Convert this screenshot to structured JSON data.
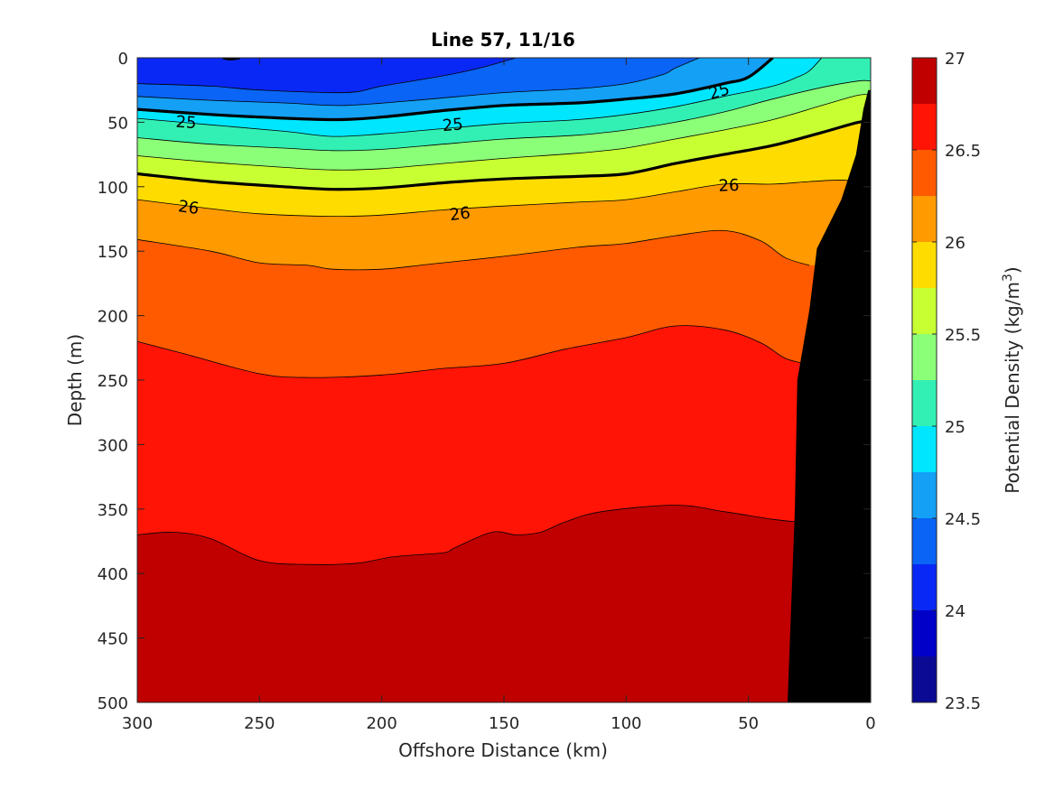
{
  "chart_data": {
    "type": "contour",
    "title": "Line 57, 11/16",
    "xlabel": "Offshore Distance (km)",
    "ylabel": "Depth (m)",
    "colorbar_label_prefix": "Potential Density (kg/m",
    "colorbar_label_sup": "3",
    "colorbar_label_suffix": ")",
    "xlim": [
      300,
      0
    ],
    "ylim": [
      0,
      500
    ],
    "y_reversed": true,
    "x_reversed": true,
    "xticks": [
      300,
      250,
      200,
      150,
      100,
      50,
      0
    ],
    "yticks": [
      0,
      50,
      100,
      150,
      200,
      250,
      300,
      350,
      400,
      450,
      500
    ],
    "colorbar_range": [
      23.5,
      27
    ],
    "colorbar_ticks": [
      23.5,
      24,
      24.5,
      25,
      25.5,
      26,
      26.5,
      27
    ],
    "colorbar_colors": [
      "#0a0a94",
      "#0000c8",
      "#0a28f5",
      "#0a64f5",
      "#14a0f5",
      "#00e6ff",
      "#32f0b4",
      "#8cff78",
      "#c8ff32",
      "#ffdc00",
      "#ff9a00",
      "#ff5a00",
      "#ff1405",
      "#c00000"
    ],
    "level_step": 0.25,
    "bands": [
      {
        "lower": 24.25,
        "color": "#0a28f5"
      },
      {
        "lower": 24.5,
        "color": "#0a64f5"
      },
      {
        "lower": 24.75,
        "color": "#14a0f5"
      },
      {
        "lower": 25.0,
        "color": "#00e6ff"
      },
      {
        "lower": 25.25,
        "color": "#32f0b4"
      },
      {
        "lower": 25.5,
        "color": "#8cff78"
      },
      {
        "lower": 25.75,
        "color": "#c8ff32"
      },
      {
        "lower": 26.0,
        "color": "#ffdc00"
      },
      {
        "lower": 26.25,
        "color": "#ff9a00"
      },
      {
        "lower": 26.5,
        "color": "#ff5a00"
      },
      {
        "lower": 26.75,
        "color": "#ff1405"
      },
      {
        "lower": 27.0,
        "color": "#c00000"
      }
    ],
    "isopycnals": [
      {
        "level": 24.5,
        "points": [
          [
            300,
            20
          ],
          [
            270,
            22
          ],
          [
            250,
            25
          ],
          [
            215,
            27
          ],
          [
            200,
            22
          ],
          [
            175,
            14
          ],
          [
            160,
            8
          ],
          [
            145,
            0
          ]
        ]
      },
      {
        "level": 24.75,
        "points": [
          [
            300,
            30
          ],
          [
            270,
            33
          ],
          [
            240,
            35
          ],
          [
            215,
            37
          ],
          [
            180,
            32
          ],
          [
            150,
            27
          ],
          [
            120,
            24
          ],
          [
            100,
            20
          ],
          [
            85,
            13
          ],
          [
            80,
            8
          ],
          [
            70,
            0
          ]
        ]
      },
      {
        "level": 25.0,
        "points": [
          [
            300,
            40
          ],
          [
            270,
            44
          ],
          [
            250,
            46
          ],
          [
            220,
            48
          ],
          [
            200,
            46
          ],
          [
            175,
            41
          ],
          [
            150,
            37
          ],
          [
            120,
            35
          ],
          [
            100,
            32
          ],
          [
            80,
            28
          ],
          [
            60,
            20
          ],
          [
            50,
            15
          ],
          [
            40,
            0
          ]
        ]
      },
      {
        "level": 25.25,
        "points": [
          [
            300,
            47
          ],
          [
            270,
            52
          ],
          [
            240,
            57
          ],
          [
            220,
            61
          ],
          [
            200,
            59
          ],
          [
            175,
            55
          ],
          [
            150,
            51
          ],
          [
            120,
            48
          ],
          [
            100,
            44
          ],
          [
            80,
            38
          ],
          [
            60,
            30
          ],
          [
            40,
            22
          ],
          [
            30,
            15
          ],
          [
            25,
            10
          ],
          [
            20,
            0
          ]
        ]
      },
      {
        "level": 25.5,
        "points": [
          [
            300,
            62
          ],
          [
            270,
            67
          ],
          [
            240,
            70
          ],
          [
            220,
            72
          ],
          [
            200,
            71
          ],
          [
            175,
            67
          ],
          [
            150,
            63
          ],
          [
            120,
            60
          ],
          [
            100,
            56
          ],
          [
            80,
            50
          ],
          [
            60,
            42
          ],
          [
            40,
            32
          ],
          [
            20,
            23
          ],
          [
            5,
            18
          ],
          [
            0,
            18
          ]
        ]
      },
      {
        "level": 25.75,
        "points": [
          [
            300,
            76
          ],
          [
            270,
            81
          ],
          [
            240,
            85
          ],
          [
            220,
            87
          ],
          [
            200,
            86
          ],
          [
            175,
            82
          ],
          [
            150,
            78
          ],
          [
            120,
            74
          ],
          [
            100,
            70
          ],
          [
            80,
            63
          ],
          [
            60,
            56
          ],
          [
            40,
            48
          ],
          [
            20,
            37
          ],
          [
            5,
            29
          ],
          [
            0,
            29
          ]
        ]
      },
      {
        "level": 26.0,
        "points": [
          [
            300,
            90
          ],
          [
            270,
            96
          ],
          [
            240,
            100
          ],
          [
            220,
            102
          ],
          [
            200,
            101
          ],
          [
            175,
            97
          ],
          [
            150,
            94
          ],
          [
            120,
            92
          ],
          [
            100,
            90
          ],
          [
            80,
            82
          ],
          [
            60,
            75
          ],
          [
            40,
            68
          ],
          [
            20,
            58
          ],
          [
            5,
            50
          ],
          [
            0,
            50
          ]
        ]
      },
      {
        "level": 26.25,
        "points": [
          [
            300,
            110
          ],
          [
            270,
            117
          ],
          [
            250,
            121
          ],
          [
            220,
            123
          ],
          [
            200,
            122
          ],
          [
            175,
            118
          ],
          [
            150,
            115
          ],
          [
            120,
            112
          ],
          [
            100,
            110
          ],
          [
            80,
            104
          ],
          [
            60,
            98
          ],
          [
            40,
            98
          ],
          [
            25,
            96
          ],
          [
            10,
            95
          ],
          [
            4,
            100
          ]
        ]
      },
      {
        "level": 26.5,
        "points": [
          [
            300,
            141
          ],
          [
            270,
            150
          ],
          [
            250,
            159
          ],
          [
            230,
            161
          ],
          [
            220,
            164
          ],
          [
            200,
            164
          ],
          [
            180,
            160
          ],
          [
            150,
            154
          ],
          [
            120,
            147
          ],
          [
            100,
            144
          ],
          [
            80,
            138
          ],
          [
            60,
            134
          ],
          [
            45,
            142
          ],
          [
            35,
            155
          ],
          [
            25,
            161
          ]
        ]
      },
      {
        "level": 26.75,
        "points": [
          [
            300,
            220
          ],
          [
            280,
            230
          ],
          [
            250,
            245
          ],
          [
            230,
            248
          ],
          [
            200,
            246
          ],
          [
            175,
            241
          ],
          [
            150,
            237
          ],
          [
            125,
            226
          ],
          [
            100,
            217
          ],
          [
            80,
            208
          ],
          [
            60,
            211
          ],
          [
            45,
            221
          ],
          [
            35,
            233
          ],
          [
            25,
            238
          ]
        ]
      },
      {
        "level": 27.0,
        "points": [
          [
            300,
            370
          ],
          [
            285,
            368
          ],
          [
            270,
            373
          ],
          [
            250,
            390
          ],
          [
            230,
            393
          ],
          [
            210,
            392
          ],
          [
            195,
            387
          ],
          [
            175,
            384
          ],
          [
            170,
            380
          ],
          [
            155,
            368
          ],
          [
            145,
            370
          ],
          [
            135,
            368
          ],
          [
            125,
            360
          ],
          [
            110,
            352
          ],
          [
            80,
            347
          ],
          [
            60,
            352
          ],
          [
            40,
            358
          ],
          [
            30,
            360
          ]
        ]
      }
    ],
    "top_band_points": [
      [
        265,
        0
      ],
      [
        262,
        1
      ],
      [
        258,
        0
      ]
    ],
    "bathymetry": [
      [
        34,
        500
      ],
      [
        31,
        350
      ],
      [
        30,
        250
      ],
      [
        25,
        195
      ],
      [
        22,
        148
      ],
      [
        12,
        110
      ],
      [
        6,
        75
      ],
      [
        3,
        40
      ],
      [
        1,
        25
      ],
      [
        0,
        25
      ],
      [
        0,
        500
      ]
    ],
    "contour_labels": [
      {
        "text": "25",
        "x": 280,
        "y": 50,
        "angle": 4
      },
      {
        "text": "25",
        "x": 171,
        "y": 52,
        "angle": -5
      },
      {
        "text": "25",
        "x": 62,
        "y": 26,
        "angle": -17
      },
      {
        "text": "26",
        "x": 279,
        "y": 116,
        "angle": 8
      },
      {
        "text": "26",
        "x": 168,
        "y": 121,
        "angle": -7
      },
      {
        "text": "26",
        "x": 58,
        "y": 99,
        "angle": -2
      }
    ]
  }
}
